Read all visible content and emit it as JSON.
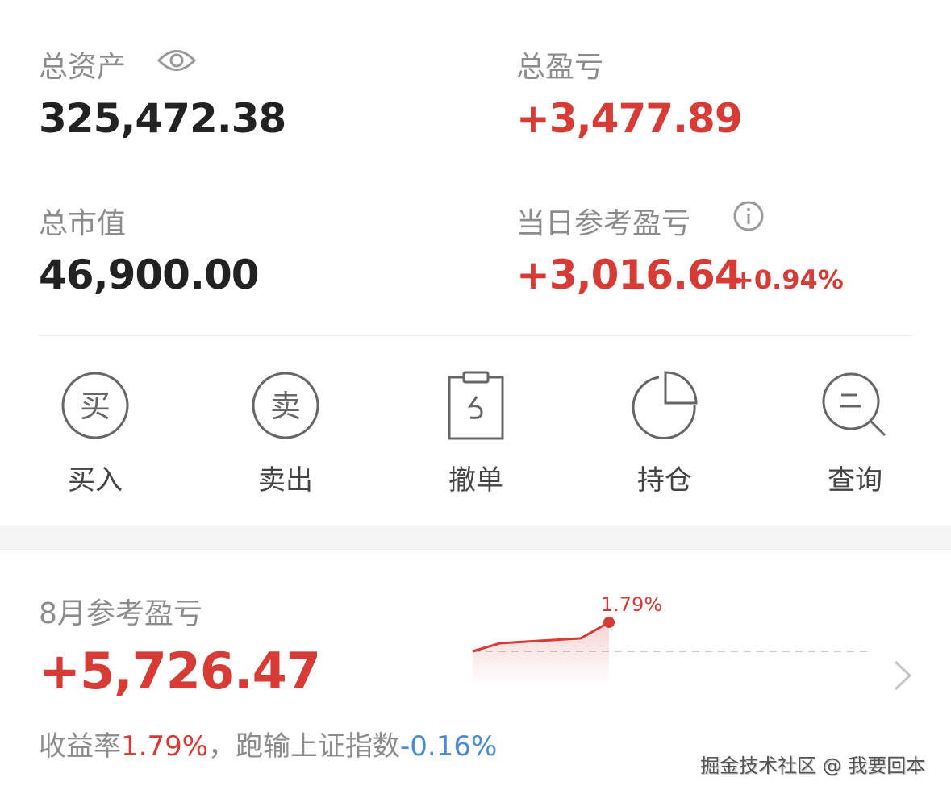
{
  "summary": {
    "total_assets_label": "总资产",
    "total_assets_value": "325,472.38",
    "total_pl_label": "总盈亏",
    "total_pl_value": "+3,477.89",
    "market_value_label": "总市值",
    "market_value_value": "46,900.00",
    "daily_pl_label": "当日参考盈亏",
    "daily_pl_value": "+3,016.64",
    "daily_pl_pct": "+0.94%"
  },
  "actions": [
    {
      "label": "买入",
      "icon": "buy-icon",
      "glyph": "买"
    },
    {
      "label": "卖出",
      "icon": "sell-icon",
      "glyph": "卖"
    },
    {
      "label": "撤单",
      "icon": "cancel-order-icon"
    },
    {
      "label": "持仓",
      "icon": "pie-chart-icon"
    },
    {
      "label": "查询",
      "icon": "search-icon"
    }
  ],
  "monthly": {
    "label": "8月参考盈亏",
    "value": "+5,726.47",
    "return_label": "收益率",
    "return_value": "1.79%",
    "compare_label": "，跑输上证指数",
    "compare_value": "-0.16%"
  },
  "chart_data": {
    "type": "line",
    "series": [
      {
        "values": [
          0,
          0.5,
          0.8,
          1.79
        ]
      }
    ],
    "baseline": 0,
    "end_label": "1.79%",
    "color": "#d63b35"
  },
  "watermark": "掘金技术社区 @ 我要回本",
  "colors": {
    "up": "#d63b35",
    "down": "#4a8ad8"
  }
}
